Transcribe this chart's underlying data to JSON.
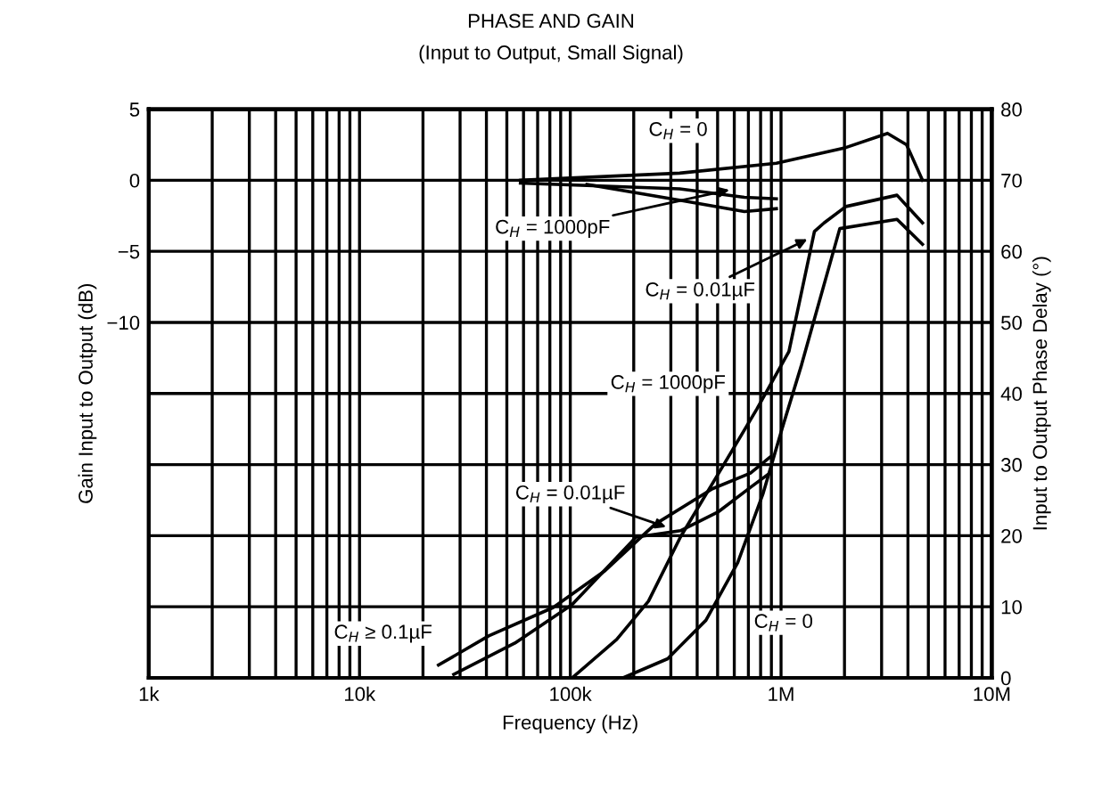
{
  "chart_data": {
    "type": "line",
    "title": "PHASE AND GAIN",
    "subtitle": "(Input to Output, Small Signal)",
    "xlabel": "Frequency (Hz)",
    "ylabel": "Gain Input to Output (dB)",
    "y2label": "Input to Output Phase Delay (°)",
    "log": "x",
    "grid": true,
    "marker": "none",
    "line_style": "solid",
    "xlim": [
      1000,
      10000000
    ],
    "xticks": [
      {
        "value": 1000,
        "label": "1k"
      },
      {
        "value": 10000,
        "label": "10k"
      },
      {
        "value": 100000,
        "label": "100k"
      },
      {
        "value": 1000000,
        "label": "1M"
      },
      {
        "value": 10000000,
        "label": "10M"
      }
    ],
    "ylim": [
      -35,
      5
    ],
    "yticks": [
      5,
      0,
      {
        "value": -5,
        "label": "−5"
      },
      {
        "value": -10,
        "label": "−10"
      }
    ],
    "y2lim": [
      0,
      80
    ],
    "y2ticks": [
      0,
      10,
      20,
      30,
      40,
      50,
      60,
      70,
      80
    ],
    "legend": false,
    "annotations": [
      "C$_{H}$ = 0",
      {
        "text": "C$_{H}$ = 1000pF",
        "x": 600000,
        "y": -0.6
      },
      {
        "text": "C$_{H}$ = 0.01µF",
        "x": 1400000,
        "y": -4
      },
      "C$_{H}$ = 1000pF",
      {
        "text": "C$_{H}$ = 0.01µF",
        "x": 300000,
        "y": -24.5
      },
      "C$_{H}$ ≥ 0.1µF",
      "C$_{H}$ = 0"
    ],
    "series": [
      {
        "color": "#000000",
        "axis": "y",
        "x": [
          58000,
          330000,
          950000,
          2030000,
          3200000,
          3940000,
          4690000
        ],
        "values": [
          0,
          0.5,
          1.2,
          2.3,
          3.3,
          2.5,
          0
        ]
      },
      {
        "color": "#000000",
        "axis": "y",
        "x": [
          58000,
          330000,
          670000,
          950000
        ],
        "values": [
          -0.2,
          -0.6,
          -1.2,
          -1.3
        ]
      },
      {
        "color": "#000000",
        "axis": "y",
        "x": [
          120000,
          330000,
          670000,
          950000
        ],
        "values": [
          -0.3,
          -1.4,
          -2.2,
          -2.0
        ]
      },
      {
        "color": "#000000",
        "axis": "y2",
        "x": [
          102000,
          166000,
          235000,
          333000,
          506000,
          767000,
          1090000,
          1440000,
          1600000,
          2030000,
          3550000,
          4690000
        ],
        "values": [
          0,
          5.4,
          10.8,
          19.8,
          28.8,
          37.8,
          45.9,
          62.8,
          64,
          66.3,
          67.9,
          64
        ]
      },
      {
        "color": "#000000",
        "axis": "y2",
        "x": [
          28000,
          54600,
          102000,
          205000,
          333000,
          506000,
          716000,
          883000
        ],
        "values": [
          0.5,
          4.9,
          10.3,
          19.8,
          20.7,
          23.4,
          26.8,
          28.8
        ]
      },
      {
        "color": "#000000",
        "axis": "y2",
        "x": [
          23700,
          41000,
          83000,
          145000,
          252000,
          472000,
          716000,
          883000
        ],
        "values": [
          1.8,
          5.9,
          9.9,
          15,
          21.6,
          26.6,
          28.8,
          31
        ]
      },
      {
        "color": "#000000",
        "axis": "y2",
        "x": [
          178000,
          290000,
          440000,
          623000,
          823000,
          1010000,
          1250000,
          1900000,
          3550000,
          4690000
        ],
        "values": [
          0,
          2.7,
          8.1,
          16.2,
          26,
          35,
          44,
          63.2,
          64.5,
          61
        ]
      }
    ]
  }
}
